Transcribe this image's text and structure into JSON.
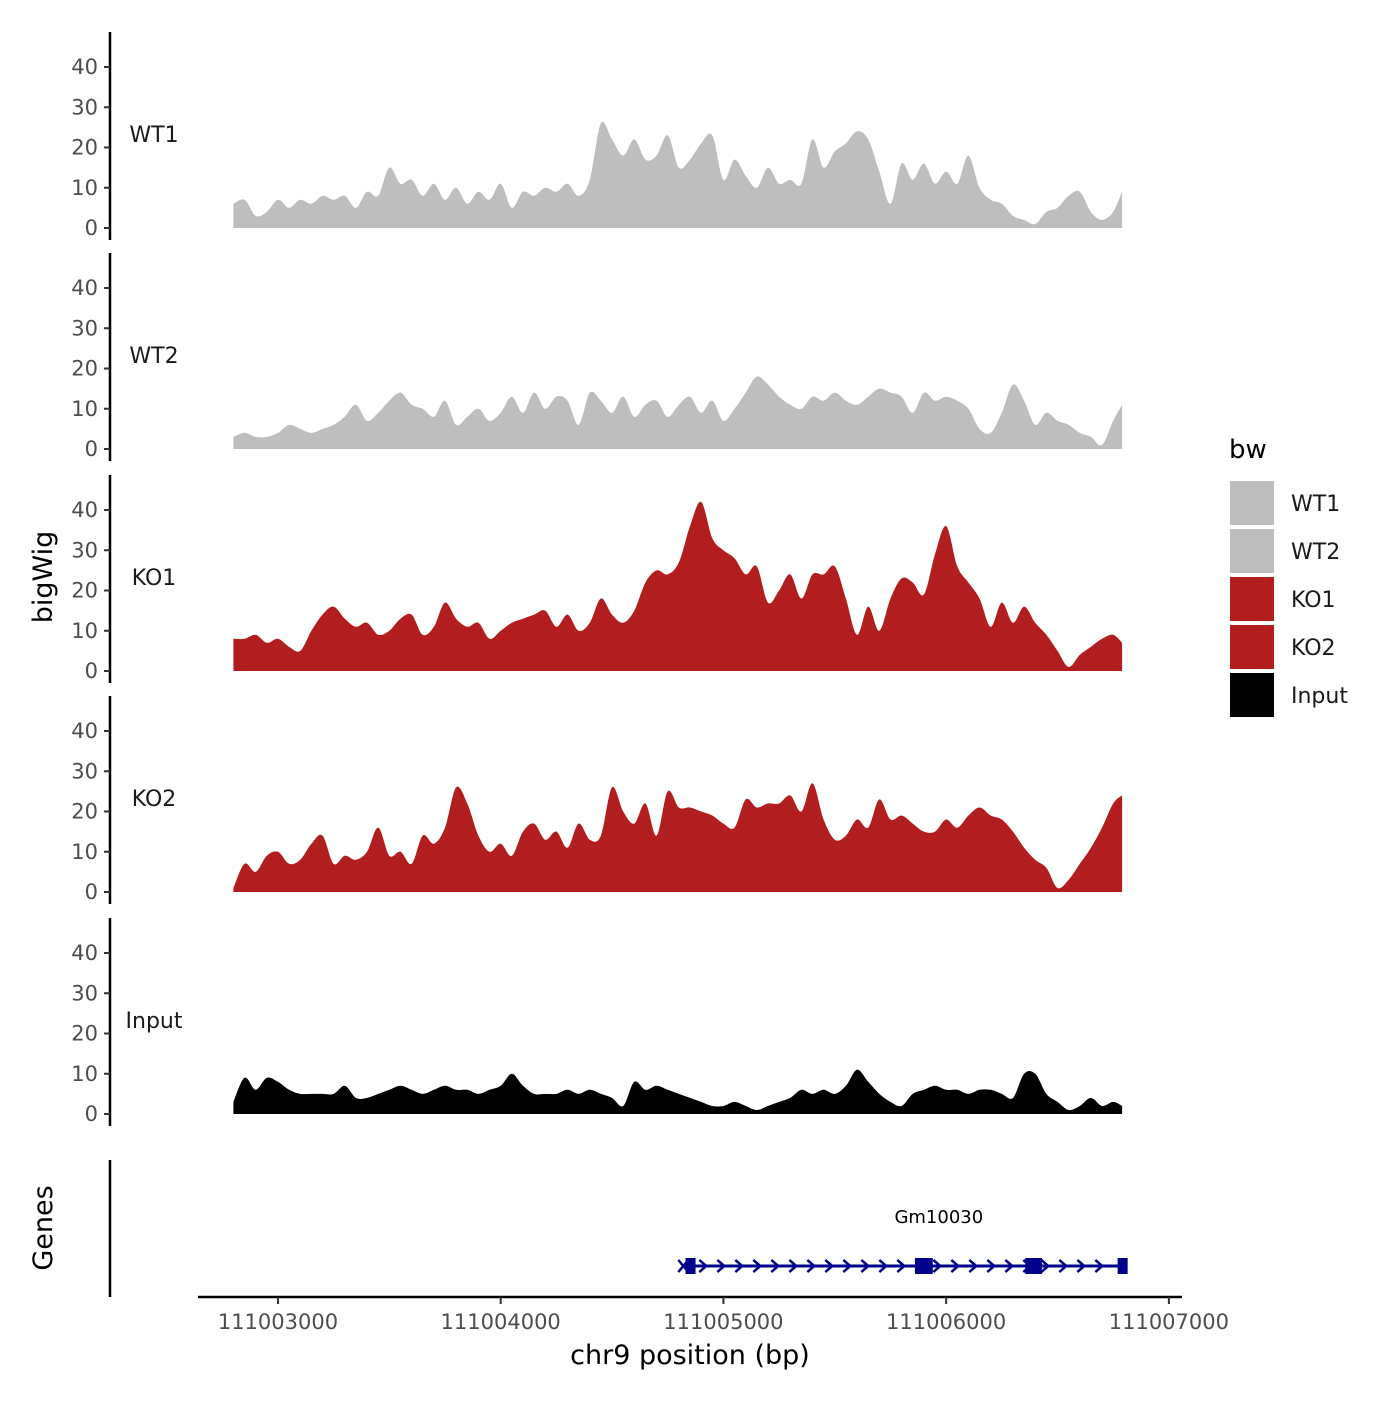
{
  "chart_data": {
    "type": "area",
    "title": "",
    "xlabel": "chr9 position (bp)",
    "ylabel": "bigWig",
    "genes_label": "Genes",
    "xlim": [
      111002650,
      111007050
    ],
    "ylim": [
      0,
      48
    ],
    "x_ticks": [
      111003000,
      111004000,
      111005000,
      111006000,
      111007000
    ],
    "x_tick_labels": [
      "111003000",
      "111004000",
      "111005000",
      "111006000",
      "111007000"
    ],
    "y_ticks": [
      0,
      10,
      20,
      30,
      40
    ],
    "y_tick_labels": [
      "0",
      "10",
      "20",
      "30",
      "40"
    ],
    "legend": {
      "title": "bw",
      "position": "right",
      "entries": [
        {
          "label": "WT1",
          "color": "#bebebe"
        },
        {
          "label": "WT2",
          "color": "#bebebe"
        },
        {
          "label": "KO1",
          "color": "#b21e20"
        },
        {
          "label": "KO2",
          "color": "#b21e20"
        },
        {
          "label": "Input",
          "color": "#000000"
        }
      ]
    },
    "tracks": [
      {
        "name": "WT1",
        "color": "#bebebe",
        "x": [
          111002800,
          111002850,
          111002900,
          111002950,
          111003000,
          111003050,
          111003100,
          111003150,
          111003200,
          111003250,
          111003300,
          111003350,
          111003400,
          111003450,
          111003500,
          111003550,
          111003600,
          111003650,
          111003700,
          111003750,
          111003800,
          111003850,
          111003900,
          111003950,
          111004000,
          111004050,
          111004100,
          111004150,
          111004200,
          111004250,
          111004300,
          111004350,
          111004400,
          111004450,
          111004500,
          111004550,
          111004600,
          111004650,
          111004700,
          111004750,
          111004800,
          111004850,
          111004900,
          111004950,
          111005000,
          111005050,
          111005100,
          111005150,
          111005200,
          111005250,
          111005300,
          111005350,
          111005400,
          111005450,
          111005500,
          111005550,
          111005600,
          111005650,
          111005700,
          111005750,
          111005800,
          111005850,
          111005900,
          111005950,
          111006000,
          111006050,
          111006100,
          111006150,
          111006200,
          111006250,
          111006300,
          111006350,
          111006400,
          111006450,
          111006500,
          111006550,
          111006600,
          111006650,
          111006700,
          111006750,
          111006790
        ],
        "y": [
          6,
          7,
          3,
          4,
          7,
          5,
          7,
          6,
          8,
          7,
          8,
          5,
          9,
          8,
          15,
          11,
          12,
          8,
          11,
          7,
          10,
          6,
          9,
          7,
          11,
          5,
          9,
          8,
          10,
          9,
          11,
          8,
          12,
          26,
          22,
          18,
          22,
          17,
          18,
          23,
          15,
          17,
          21,
          23,
          12,
          17,
          13,
          10,
          15,
          11,
          12,
          11,
          22,
          15,
          19,
          21,
          24,
          22,
          14,
          6,
          16,
          12,
          16,
          11,
          14,
          11,
          18,
          10,
          7,
          6,
          3,
          2,
          1,
          4,
          5,
          8,
          9,
          4,
          2,
          4,
          9
        ]
      },
      {
        "name": "WT2",
        "color": "#bebebe",
        "x": [
          111002800,
          111002850,
          111002900,
          111002950,
          111003000,
          111003050,
          111003100,
          111003150,
          111003200,
          111003250,
          111003300,
          111003350,
          111003400,
          111003450,
          111003500,
          111003550,
          111003600,
          111003650,
          111003700,
          111003750,
          111003800,
          111003850,
          111003900,
          111003950,
          111004000,
          111004050,
          111004100,
          111004150,
          111004200,
          111004250,
          111004300,
          111004350,
          111004400,
          111004450,
          111004500,
          111004550,
          111004600,
          111004650,
          111004700,
          111004750,
          111004800,
          111004850,
          111004900,
          111004950,
          111005000,
          111005050,
          111005100,
          111005150,
          111005200,
          111005250,
          111005300,
          111005350,
          111005400,
          111005450,
          111005500,
          111005550,
          111005600,
          111005650,
          111005700,
          111005750,
          111005800,
          111005850,
          111005900,
          111005950,
          111006000,
          111006050,
          111006100,
          111006150,
          111006200,
          111006250,
          111006300,
          111006350,
          111006400,
          111006450,
          111006500,
          111006550,
          111006600,
          111006650,
          111006700,
          111006750,
          111006790
        ],
        "y": [
          3,
          4,
          3,
          3,
          4,
          6,
          5,
          4,
          5,
          6,
          8,
          11,
          7,
          9,
          12,
          14,
          11,
          10,
          8,
          12,
          6,
          8,
          10,
          7,
          9,
          13,
          9,
          14,
          10,
          13,
          12,
          6,
          14,
          12,
          9,
          13,
          8,
          11,
          12,
          8,
          11,
          13,
          9,
          12,
          7,
          10,
          14,
          18,
          16,
          13,
          11,
          10,
          13,
          12,
          14,
          12,
          11,
          13,
          15,
          14,
          13,
          9,
          14,
          12,
          13,
          12,
          10,
          5,
          4,
          9,
          16,
          12,
          6,
          9,
          7,
          6,
          4,
          3,
          1,
          7,
          11
        ]
      },
      {
        "name": "KO1",
        "color": "#b21e20",
        "x": [
          111002800,
          111002850,
          111002900,
          111002950,
          111003000,
          111003050,
          111003100,
          111003150,
          111003200,
          111003250,
          111003300,
          111003350,
          111003400,
          111003450,
          111003500,
          111003550,
          111003600,
          111003650,
          111003700,
          111003750,
          111003800,
          111003850,
          111003900,
          111003950,
          111004000,
          111004050,
          111004100,
          111004150,
          111004200,
          111004250,
          111004300,
          111004350,
          111004400,
          111004450,
          111004500,
          111004550,
          111004600,
          111004650,
          111004700,
          111004750,
          111004800,
          111004850,
          111004900,
          111004950,
          111005000,
          111005050,
          111005100,
          111005150,
          111005200,
          111005250,
          111005300,
          111005350,
          111005400,
          111005450,
          111005500,
          111005550,
          111005600,
          111005650,
          111005700,
          111005750,
          111005800,
          111005850,
          111005900,
          111005950,
          111006000,
          111006050,
          111006100,
          111006150,
          111006200,
          111006250,
          111006300,
          111006350,
          111006400,
          111006450,
          111006500,
          111006550,
          111006600,
          111006650,
          111006700,
          111006750,
          111006790
        ],
        "y": [
          8,
          8,
          9,
          7,
          8,
          6,
          5,
          10,
          14,
          16,
          13,
          11,
          12,
          9,
          10,
          13,
          14,
          9,
          11,
          17,
          13,
          11,
          12,
          8,
          10,
          12,
          13,
          14,
          15,
          11,
          14,
          10,
          12,
          18,
          14,
          12,
          15,
          22,
          25,
          24,
          27,
          36,
          42,
          33,
          30,
          28,
          24,
          26,
          17,
          20,
          24,
          18,
          24,
          24,
          26,
          18,
          9,
          16,
          10,
          18,
          23,
          22,
          19,
          29,
          36,
          26,
          22,
          18,
          11,
          17,
          12,
          16,
          12,
          9,
          5,
          1,
          4,
          6,
          8,
          9,
          7
        ]
      },
      {
        "name": "KO2",
        "color": "#b21e20",
        "x": [
          111002800,
          111002850,
          111002900,
          111002950,
          111003000,
          111003050,
          111003100,
          111003150,
          111003200,
          111003250,
          111003300,
          111003350,
          111003400,
          111003450,
          111003500,
          111003550,
          111003600,
          111003650,
          111003700,
          111003750,
          111003800,
          111003850,
          111003900,
          111003950,
          111004000,
          111004050,
          111004100,
          111004150,
          111004200,
          111004250,
          111004300,
          111004350,
          111004400,
          111004450,
          111004500,
          111004550,
          111004600,
          111004650,
          111004700,
          111004750,
          111004800,
          111004850,
          111004900,
          111004950,
          111005000,
          111005050,
          111005100,
          111005150,
          111005200,
          111005250,
          111005300,
          111005350,
          111005400,
          111005450,
          111005500,
          111005550,
          111005600,
          111005650,
          111005700,
          111005750,
          111005800,
          111005850,
          111005900,
          111005950,
          111006000,
          111006050,
          111006100,
          111006150,
          111006200,
          111006250,
          111006300,
          111006350,
          111006400,
          111006450,
          111006500,
          111006550,
          111006600,
          111006650,
          111006700,
          111006750,
          111006790
        ],
        "y": [
          1,
          7,
          5,
          9,
          10,
          7,
          8,
          12,
          14,
          7,
          9,
          8,
          10,
          16,
          9,
          10,
          7,
          14,
          12,
          16,
          26,
          22,
          14,
          10,
          12,
          9,
          15,
          17,
          13,
          15,
          11,
          17,
          13,
          14,
          26,
          20,
          17,
          22,
          14,
          25,
          21,
          21,
          20,
          19,
          17,
          16,
          23,
          21,
          22,
          22,
          24,
          20,
          27,
          18,
          13,
          14,
          18,
          16,
          23,
          18,
          19,
          17,
          15,
          15,
          18,
          16,
          19,
          21,
          19,
          18,
          15,
          11,
          8,
          6,
          1,
          3,
          7,
          11,
          16,
          22,
          24
        ]
      },
      {
        "name": "Input",
        "color": "#000000",
        "x": [
          111002800,
          111002850,
          111002900,
          111002950,
          111003000,
          111003050,
          111003100,
          111003150,
          111003200,
          111003250,
          111003300,
          111003350,
          111003400,
          111003450,
          111003500,
          111003550,
          111003600,
          111003650,
          111003700,
          111003750,
          111003800,
          111003850,
          111003900,
          111003950,
          111004000,
          111004050,
          111004100,
          111004150,
          111004200,
          111004250,
          111004300,
          111004350,
          111004400,
          111004450,
          111004500,
          111004550,
          111004600,
          111004650,
          111004700,
          111004750,
          111004800,
          111004850,
          111004900,
          111004950,
          111005000,
          111005050,
          111005100,
          111005150,
          111005200,
          111005250,
          111005300,
          111005350,
          111005400,
          111005450,
          111005500,
          111005550,
          111005600,
          111005650,
          111005700,
          111005750,
          111005800,
          111005850,
          111005900,
          111005950,
          111006000,
          111006050,
          111006100,
          111006150,
          111006200,
          111006250,
          111006300,
          111006350,
          111006400,
          111006450,
          111006500,
          111006550,
          111006600,
          111006650,
          111006700,
          111006750,
          111006790
        ],
        "y": [
          3,
          9,
          6,
          9,
          8,
          6,
          5,
          5,
          5,
          5,
          7,
          4,
          4,
          5,
          6,
          7,
          6,
          5,
          6,
          7,
          6,
          6,
          5,
          6,
          7,
          10,
          7,
          5,
          5,
          5,
          6,
          5,
          6,
          5,
          4,
          2,
          8,
          6,
          7,
          6,
          5,
          4,
          3,
          2,
          2,
          3,
          2,
          1,
          2,
          3,
          4,
          6,
          5,
          6,
          5,
          7,
          11,
          8,
          5,
          3,
          2,
          5,
          6,
          7,
          6,
          6,
          5,
          6,
          6,
          5,
          4,
          10,
          10,
          5,
          3,
          1,
          2,
          4,
          2,
          3,
          2
        ]
      }
    ],
    "gene": {
      "name": "Gm10030",
      "start": 111004820,
      "end": 111006800,
      "strand": "+",
      "color": "#00008b",
      "exons": [
        [
          111004830,
          111004870
        ],
        [
          111005860,
          111005940
        ],
        [
          111006355,
          111006430
        ],
        [
          111006770,
          111006800
        ]
      ]
    }
  }
}
